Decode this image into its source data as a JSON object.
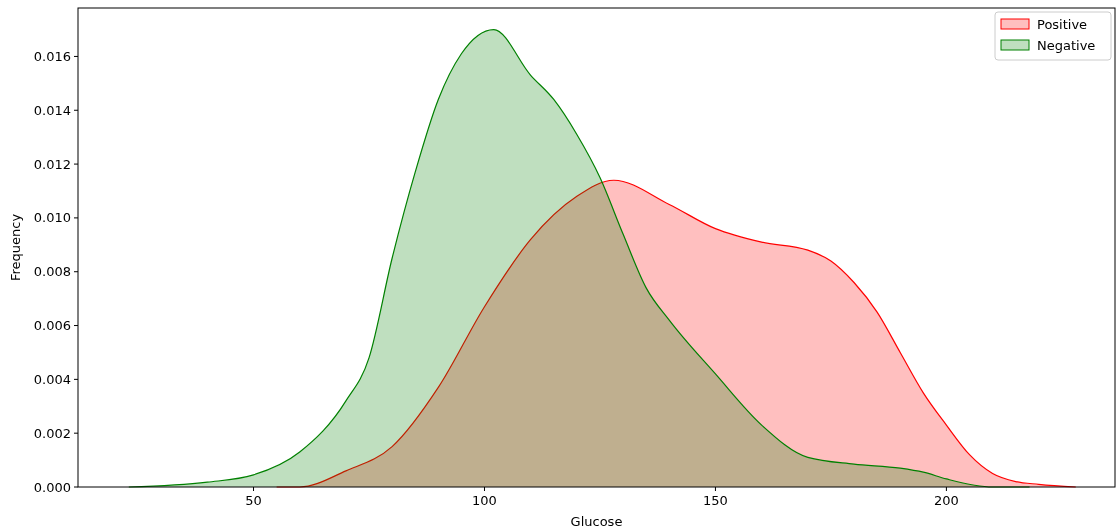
{
  "chart_data": {
    "type": "area",
    "xlabel": "Glucose",
    "ylabel": "Frequency",
    "xlim": [
      12,
      236.5
    ],
    "ylim": [
      0,
      0.0178
    ],
    "xticks": [
      50,
      100,
      150,
      200
    ],
    "yticks": [
      {
        "value": 0,
        "label": "0.000"
      },
      {
        "value": 0.002,
        "label": "0.002"
      },
      {
        "value": 0.004,
        "label": "0.004"
      },
      {
        "value": 0.006,
        "label": "0.006"
      },
      {
        "value": 0.008,
        "label": "0.008"
      },
      {
        "value": 0.01,
        "label": "0.010"
      },
      {
        "value": 0.012,
        "label": "0.012"
      },
      {
        "value": 0.014,
        "label": "0.014"
      },
      {
        "value": 0.016,
        "label": "0.016"
      }
    ],
    "grid": false,
    "legend": "top right",
    "series": [
      {
        "name": "Positive",
        "color": "#ff0000",
        "x": [
          55,
          60,
          70,
          80,
          90,
          100,
          110,
          120,
          128,
          140,
          150,
          160,
          170,
          175,
          180,
          185,
          190,
          195,
          200,
          205,
          210,
          215,
          220,
          228
        ],
        "values": [
          0,
          0,
          0.0006,
          0.0015,
          0.0037,
          0.0067,
          0.0092,
          0.0108,
          0.0114,
          0.0105,
          0.0096,
          0.0091,
          0.0088,
          0.0084,
          0.0076,
          0.0065,
          0.005,
          0.0035,
          0.0023,
          0.0012,
          0.0005,
          0.0002,
          0.0001,
          0
        ]
      },
      {
        "name": "Negative",
        "color": "#008000",
        "x": [
          23,
          40,
          50,
          60,
          70,
          75,
          80,
          85,
          90,
          95,
          102,
          110,
          115,
          120,
          125,
          130,
          135,
          140,
          150,
          160,
          170,
          180,
          190,
          195,
          200,
          210,
          218
        ],
        "values": [
          0,
          0.00018,
          0.00045,
          0.0013,
          0.0032,
          0.0048,
          0.0085,
          0.0117,
          0.0144,
          0.0161,
          0.017,
          0.0153,
          0.0144,
          0.0131,
          0.0115,
          0.0094,
          0.0074,
          0.0062,
          0.0042,
          0.0023,
          0.0011,
          0.00085,
          0.0007,
          0.00055,
          0.0003,
          0,
          0
        ]
      }
    ]
  }
}
